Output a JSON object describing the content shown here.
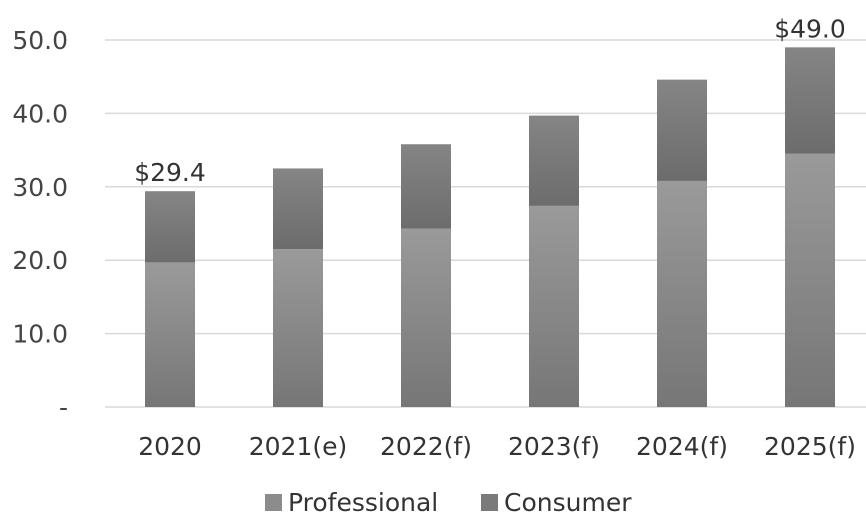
{
  "chart_data": {
    "type": "bar",
    "stacked": true,
    "categories": [
      "2020",
      "2021(e)",
      "2022(f)",
      "2023(f)",
      "2024(f)",
      "2025(f)"
    ],
    "series": [
      {
        "name": "Professional",
        "values": [
          19.7,
          21.5,
          24.3,
          27.4,
          30.8,
          34.5
        ],
        "color": "#8c8c8c"
      },
      {
        "name": "Consumer",
        "values": [
          9.7,
          11.0,
          11.5,
          12.3,
          13.8,
          14.5
        ],
        "color": "#7a7a7a"
      }
    ],
    "totals": [
      29.4,
      32.5,
      35.8,
      39.7,
      44.6,
      49.0
    ],
    "data_labels": [
      {
        "category_index": 0,
        "text": "$29.4"
      },
      {
        "category_index": 5,
        "text": "$49.0"
      }
    ],
    "y_ticks": [
      {
        "value": 0,
        "label": "-"
      },
      {
        "value": 10,
        "label": "10.0"
      },
      {
        "value": 20,
        "label": "20.0"
      },
      {
        "value": 30,
        "label": "30.0"
      },
      {
        "value": 40,
        "label": "40.0"
      },
      {
        "value": 50,
        "label": "50.0"
      }
    ],
    "ylim": [
      0,
      50
    ],
    "grid": true,
    "legend_position": "bottom",
    "title": "",
    "xlabel": "",
    "ylabel": ""
  }
}
